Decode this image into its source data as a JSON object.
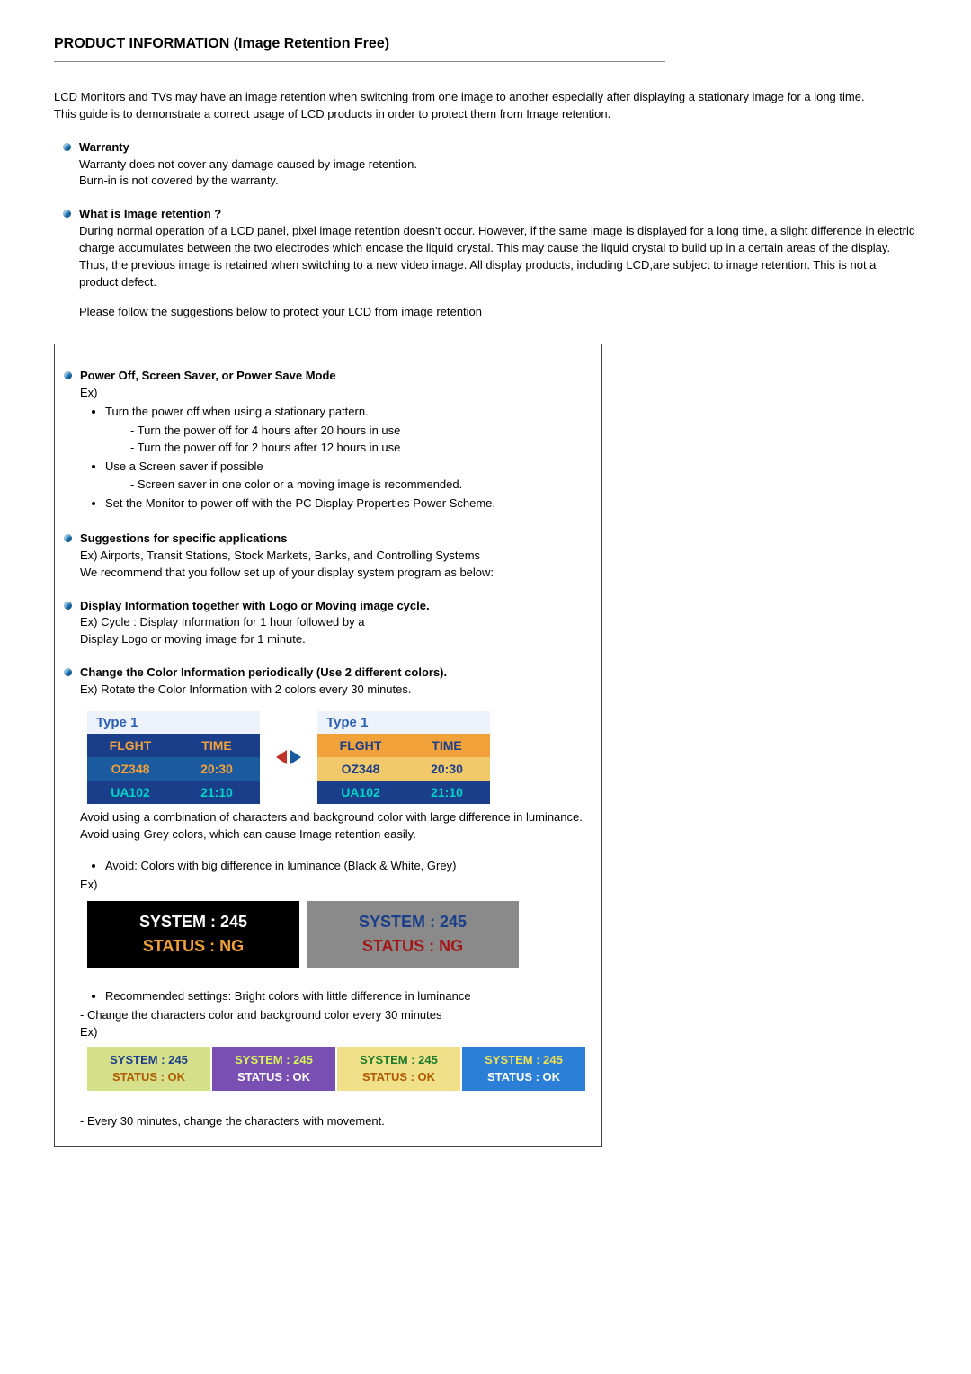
{
  "title": "PRODUCT INFORMATION (Image Retention Free)",
  "intro": {
    "p1": "LCD Monitors and TVs may have an image retention when switching from one image to another especially after displaying a stationary image for a long time.",
    "p2": "This guide is to demonstrate a correct usage of LCD products in order to protect them from Image retention."
  },
  "warranty": {
    "heading": "Warranty",
    "l1": "Warranty does not cover any damage caused by image retention.",
    "l2": "Burn-in is not covered by the warranty."
  },
  "what": {
    "heading": "What is Image retention ?",
    "body": "During normal operation of a LCD panel, pixel image retention doesn't occur. However, if the same image is displayed for a long time, a slight difference in electric charge accumulates between the two electrodes which encase the liquid crystal. This may cause the liquid crystal to build up in a certain areas of the display. Thus, the previous image is retained when switching to a new video image. All display products, including LCD,are subject to image retention. This is not a product defect.",
    "follow": "Please follow the suggestions below to protect your LCD from image retention"
  },
  "poweroff": {
    "heading": "Power Off, Screen Saver, or Power Save Mode",
    "ex": "Ex)",
    "li1": "Turn the power off when using a stationary pattern.",
    "li1a": "- Turn the power off for 4 hours after 20 hours in use",
    "li1b": "- Turn the power off for 2 hours after 12 hours in use",
    "li2": "Use a Screen saver if possible",
    "li2a": "- Screen saver in one color or a moving image is recommended.",
    "li3": "Set the Monitor to power off with the PC Display Properties Power Scheme."
  },
  "suggest": {
    "heading": "Suggestions for specific applications",
    "l1": "Ex) Airports, Transit Stations, Stock Markets, Banks, and Controlling Systems",
    "l2": "We recommend that you follow set up of your display system program as below:"
  },
  "displayinfo": {
    "heading": "Display Information together with Logo or Moving image cycle.",
    "l1": "Ex) Cycle : Display Information for 1 hour followed by a",
    "l2": "Display Logo or moving image for 1 minute."
  },
  "changecolor": {
    "heading": "Change the Color Information periodically (Use 2 different colors).",
    "l1": "Ex) Rotate the Color Information with 2 colors every 30 minutes."
  },
  "flight": {
    "type1": "Type 1",
    "h1": "FLGHT",
    "h2": "TIME",
    "r1c1": "OZ348",
    "r1c2": "20:30",
    "r2c1": "UA102",
    "r2c2": "21:10"
  },
  "avoid": {
    "l1": "Avoid using a combination of characters and background color with large difference in luminance.",
    "l2": "Avoid using Grey colors, which can cause Image retention easily.",
    "li1": "Avoid: Colors with big difference in luminance (Black & White, Grey)",
    "ex": "Ex)"
  },
  "status_bad": {
    "sys": "SYSTEM : 245",
    "stat": "STATUS : NG",
    "a": {
      "bg": "#000000",
      "c1": "#ffffff",
      "c2": "#f1a23a"
    },
    "b": {
      "bg": "#8a8a8a",
      "c1": "#1b3e8a",
      "c2": "#a31616"
    }
  },
  "recommended": {
    "li1": "Recommended settings: Bright colors with little difference in luminance",
    "l1": "- Change the characters color and background color every 30 minutes",
    "ex": "Ex)"
  },
  "status_ok": {
    "sys": "SYSTEM : 245",
    "stat": "STATUS : OK",
    "panels": [
      {
        "bg": "#d6e08a",
        "c1": "#1b3e8a",
        "c2": "#b05a00"
      },
      {
        "bg": "#7a4fb3",
        "c1": "#d6f55a",
        "c2": "#ffffff"
      },
      {
        "bg": "#f1e08a",
        "c1": "#1b7a2b",
        "c2": "#b05a00"
      },
      {
        "bg": "#2b7fd6",
        "c1": "#f1e055",
        "c2": "#ffffff"
      }
    ]
  },
  "every30": "- Every 30 minutes, change the characters with movement."
}
